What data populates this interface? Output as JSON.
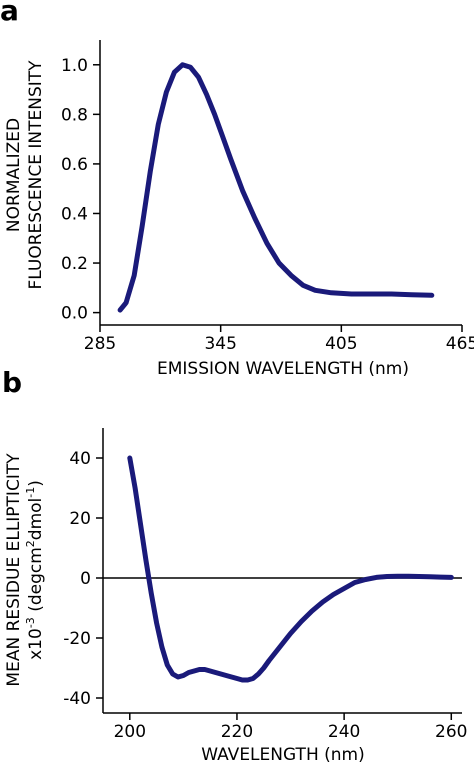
{
  "colors": {
    "series": "#1a1a7a",
    "axis": "#000000"
  },
  "chart_data": [
    {
      "panel": "a",
      "type": "line",
      "xlabel": "EMISSION WAVELENGTH (nm)",
      "ylabel_lines": [
        "NORMALIZED",
        "FLUORESCENCE INTENSITY"
      ],
      "xlim": [
        285,
        465
      ],
      "ylim": [
        -0.05,
        1.1
      ],
      "xticks": [
        285,
        345,
        405,
        465
      ],
      "yticks": [
        0.0,
        0.2,
        0.4,
        0.6,
        0.8,
        1.0
      ],
      "ytick_labels": [
        "0.0",
        "0.2",
        "0.4",
        "0.6",
        "0.8",
        "1.0"
      ],
      "grid": false,
      "series": [
        {
          "x": [
            295,
            298,
            302,
            306,
            310,
            314,
            318,
            322,
            326,
            330,
            334,
            338,
            342,
            346,
            350,
            356,
            362,
            368,
            374,
            380,
            386,
            392,
            400,
            410,
            420,
            430,
            440,
            450
          ],
          "y": [
            0.01,
            0.04,
            0.15,
            0.35,
            0.57,
            0.76,
            0.89,
            0.97,
            1.0,
            0.99,
            0.95,
            0.88,
            0.8,
            0.71,
            0.62,
            0.49,
            0.38,
            0.28,
            0.2,
            0.15,
            0.11,
            0.09,
            0.08,
            0.075,
            0.075,
            0.075,
            0.072,
            0.07
          ]
        }
      ]
    },
    {
      "panel": "b",
      "type": "line",
      "xlabel": "WAVELENGTH (nm)",
      "ylabel_line1": "MEAN RESIDUE ELLIPTICITY",
      "ylabel_line2": {
        "pre": "x10",
        "sup1": "-3",
        "mid": " (degcm",
        "sup2": "2",
        "mid2": "dmol",
        "sup3": "-1",
        "post": ")"
      },
      "xlim": [
        195,
        262
      ],
      "ylim": [
        -45,
        50
      ],
      "xticks": [
        200,
        220,
        240,
        260
      ],
      "yticks": [
        -40,
        -20,
        0,
        20,
        40
      ],
      "zero_line": true,
      "grid": false,
      "series": [
        {
          "x": [
            200,
            201,
            202,
            203,
            204,
            205,
            206,
            207,
            208,
            209,
            210,
            211,
            212,
            213,
            214,
            215,
            216,
            217,
            218,
            219,
            220,
            221,
            222,
            223,
            224,
            225,
            226,
            228,
            230,
            232,
            234,
            236,
            238,
            240,
            242,
            244,
            246,
            248,
            250,
            252,
            254,
            256,
            258,
            260
          ],
          "y": [
            40,
            30,
            18,
            6,
            -5,
            -15,
            -23,
            -29,
            -32,
            -33,
            -32.5,
            -31.5,
            -31,
            -30.5,
            -30.5,
            -31,
            -31.5,
            -32,
            -32.5,
            -33,
            -33.5,
            -34,
            -34,
            -33.5,
            -32,
            -30,
            -27.5,
            -23,
            -18.5,
            -14.5,
            -11,
            -8,
            -5.5,
            -3.5,
            -1.5,
            -0.5,
            0.2,
            0.5,
            0.6,
            0.6,
            0.5,
            0.4,
            0.3,
            0.2
          ]
        }
      ]
    }
  ],
  "labels": {
    "panel_a": "a",
    "panel_b": "b"
  }
}
